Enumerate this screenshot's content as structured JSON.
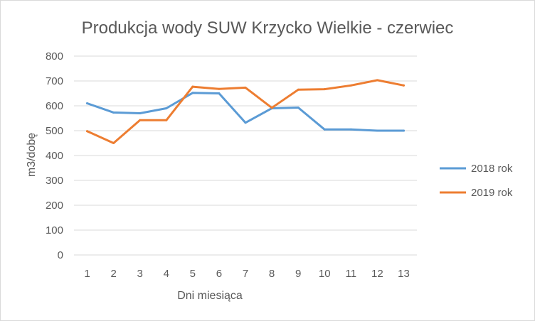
{
  "chart_data": {
    "type": "line",
    "title": "Produkcja wody SUW Krzycko Wielkie - czerwiec",
    "xlabel": "Dni miesiąca",
    "ylabel": "m3/dobę",
    "categories": [
      "1",
      "2",
      "3",
      "4",
      "5",
      "6",
      "7",
      "8",
      "9",
      "10",
      "11",
      "12",
      "13"
    ],
    "ylim": [
      0,
      800
    ],
    "yticks": [
      "0",
      "100",
      "200",
      "300",
      "400",
      "500",
      "600",
      "700",
      "800"
    ],
    "grid": true,
    "legend_position": "right",
    "series": [
      {
        "name": "2018 rok",
        "color": "#5b9bd5",
        "values": [
          610,
          573,
          570,
          590,
          652,
          650,
          532,
          590,
          593,
          505,
          505,
          500,
          500
        ]
      },
      {
        "name": "2019 rok",
        "color": "#ed7d31",
        "values": [
          498,
          450,
          542,
          542,
          677,
          668,
          673,
          592,
          665,
          667,
          682,
          703,
          682
        ]
      }
    ]
  }
}
